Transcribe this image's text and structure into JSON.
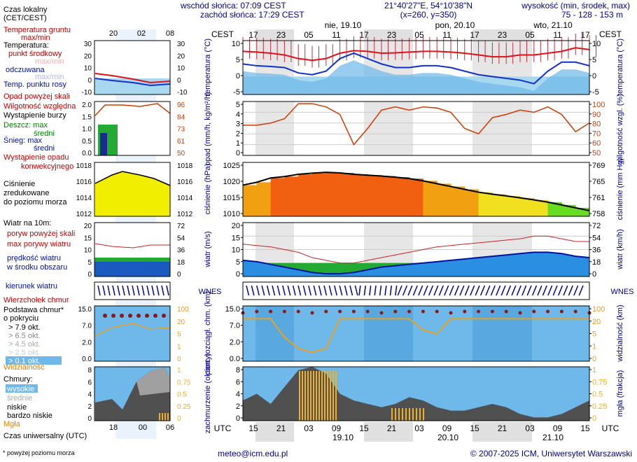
{
  "header": {
    "sunrise": "wschód słońca: 07:09 CEST",
    "sunset": "zachód słońca: 17:29 CEST",
    "coords": "21°40'27\"E, 54°10'38\"N",
    "grid": "(x=260, y=350)",
    "elev_label": "wysokość (min, środek, max)",
    "elev_values": "75 - 128 - 153 m",
    "tz_top": "CEST",
    "top_hours": [
      "17",
      "23",
      "05",
      "11",
      "17",
      "23",
      "05",
      "11",
      "17",
      "23",
      "05",
      "11",
      "17"
    ],
    "days": [
      "nie, 19.10",
      "pon, 20.10",
      "wto, 21.10"
    ],
    "utc_label": "UTC",
    "bottom_hours": [
      "15",
      "21",
      "03",
      "09",
      "15",
      "21",
      "03",
      "09",
      "15",
      "21",
      "03",
      "09",
      "15"
    ],
    "bottom_dates": [
      "19.10",
      "20.10",
      "21.10"
    ]
  },
  "legend": {
    "local_time": "Czas lokalny (CET/CEST)",
    "local_hours": [
      "20",
      "02",
      "08"
    ],
    "utc_time": "Czas uniwersalny (UTC)",
    "utc_hours": [
      "18",
      "00",
      "06"
    ],
    "temp": {
      "ground": "Temperatura gruntu",
      "ground_maxmin": "max/min",
      "title": "Temperatura:",
      "center": "punkt środkowy",
      "maxmin": "max/min",
      "feels": "odczuwana",
      "feels_maxmin": "max/min",
      "dew": "Temp. punktu rosy",
      "ticks": [
        "30",
        "20",
        "10",
        "0",
        "-10"
      ]
    },
    "precip": {
      "above": "Opad powyżej skali",
      "humidity": "Wilgotność względna",
      "storm": "Wystąpienie burzy",
      "rain": "Deszcz: max",
      "rain_mean": "średni",
      "snow": "Śnieg: max",
      "snow_mean": "średni",
      "occurrence": "Wystąpienie opadu konwekcyjnego",
      "ticks_left": [
        "2.0",
        "1.5",
        "1.0",
        "0.5",
        "0.0"
      ],
      "ticks_right": [
        "96",
        "84",
        "73",
        "61",
        "50"
      ]
    },
    "pressure": {
      "title": "Ciśnienie zredukowane do poziomu morza",
      "ticks_left": [
        "1018",
        "1016",
        "1014",
        "1012"
      ],
      "ticks_right": [
        "1018",
        "1016",
        "1014",
        "1012"
      ]
    },
    "wind": {
      "title": "Wiatr na 10m:",
      "gust_above": "poryw powyżej skali",
      "gust_max": "max porywy wiatru",
      "speed": "prędkość wiatru w środku obszaru",
      "ticks_left": [
        "20",
        "15",
        "10",
        "5",
        "0"
      ],
      "ticks_right": [
        "72",
        "54",
        "36",
        "18",
        "0"
      ]
    },
    "direction": "kierunek wiatru",
    "clouds": {
      "top": "Wierzchołek chmur",
      "base": "Podstawa chmur* o pokryciu",
      "okt": [
        "> 7.9 okt.",
        "> 6.5 okt.",
        "> 4.5 okt.",
        "> 2.5 okt.",
        "> 0.1 okt."
      ],
      "visibility": "Widzialność",
      "ticks_left": [
        "15.0",
        "7.0",
        "2.0",
        "0.0"
      ],
      "ticks_right": [
        "100",
        "20",
        "5",
        "1",
        "0"
      ]
    },
    "cover": {
      "title": "Chmury:",
      "high": "wysokie",
      "mid": "średnie",
      "low": "niskie",
      "very_low": "bardzo niskie",
      "fog": "Mgła",
      "ticks_left": [
        "8",
        "6",
        "4",
        "2",
        "0"
      ],
      "ticks_right": [
        "1",
        "0.75",
        "0.5",
        "0.25",
        "0"
      ]
    },
    "footnote": "* powyżej poziomu morza"
  },
  "axes": {
    "temp": {
      "left": "temperatura (°C)",
      "right": "temperatura (°C)",
      "ticks_l": [
        "10",
        "5",
        "0",
        "-5"
      ],
      "ticks_r": [
        "10",
        "5",
        "0",
        "-5"
      ]
    },
    "precip": {
      "left": "opad (mm/h, kg/m²/h)",
      "right": "wilgotność wzgl. (%)",
      "ticks_l": [
        "5",
        "4",
        "3",
        "2",
        "1",
        "0"
      ],
      "ticks_r": [
        "100",
        "90",
        "80",
        "70",
        "60",
        "50"
      ]
    },
    "pressure": {
      "left": "ciśnienie (hPa)",
      "right": "ciśnienie (mm Hg)",
      "ticks_l": [
        "1025",
        "1020",
        "1015",
        "1010"
      ],
      "ticks_r": [
        "769",
        "765",
        "761",
        "758"
      ]
    },
    "wind": {
      "left": "wiatr (m/s)",
      "right": "wiatr (km/h)",
      "ticks_l": [
        "20",
        "15",
        "10",
        "5",
        "0"
      ],
      "ticks_r": [
        "72",
        "54",
        "36",
        "18",
        "0"
      ]
    },
    "cloudbase": {
      "left": "pion. rozciągł. chm. (km)",
      "right": "widzialność (km)",
      "ticks_l": [
        "15.0",
        "7.0",
        "2.0",
        "0.0"
      ],
      "ticks_r": [
        "100",
        "20",
        "5",
        "1",
        "0"
      ]
    },
    "cover": {
      "left": "zachmurzenie (oktanty)",
      "right": "mgła (frakcja)",
      "ticks_l": [
        "8",
        "6",
        "4",
        "2",
        "0"
      ],
      "ticks_r": [
        "1",
        "0.75",
        "0.5",
        "0.25",
        "0"
      ]
    }
  },
  "footer": {
    "email": "meteo@icm.edu.pl",
    "copyright": "© 2007-2025 ICM, Uniwersytet Warszawski"
  },
  "colors": {
    "temp_line": "#e0101a",
    "feels_line": "#1030d0",
    "humidity": "#d03a00",
    "pressure_line": "#000000",
    "wind_fill": "#22aa33",
    "gust": "#cc2222",
    "arrow": "#00008b",
    "visibility": "#e8a020",
    "cloud_top": "#8b1a1a",
    "fog": "#f0b020"
  },
  "chart_data": {
    "type": "line",
    "x": [
      "15",
      "18",
      "21",
      "00",
      "03",
      "06",
      "09",
      "12",
      "15",
      "18",
      "21",
      "00",
      "03",
      "06",
      "09",
      "12",
      "15",
      "18",
      "21",
      "00",
      "03",
      "06",
      "09",
      "12",
      "15",
      "18"
    ],
    "x_unit": "UTC hour",
    "series": [
      {
        "name": "temperatura",
        "values": [
          7,
          6.8,
          6.5,
          6,
          5,
          4.5,
          5,
          6.5,
          7.2,
          7,
          6.5,
          6.6,
          6.8,
          7,
          7,
          6.8,
          6.5,
          6,
          5.5,
          5.5,
          6,
          6,
          6.5,
          7,
          8,
          7.5
        ]
      },
      {
        "name": "odczuwana",
        "values": [
          3.5,
          3,
          2.8,
          2.5,
          1,
          0.5,
          1.5,
          5,
          6.5,
          5,
          3.5,
          2.5,
          2.5,
          3,
          3,
          2.5,
          1.5,
          0.5,
          0,
          -0.5,
          -1,
          -2,
          1.5,
          4,
          4,
          3
        ]
      },
      {
        "name": "wilgotność",
        "values": [
          78,
          78,
          80,
          84,
          98,
          98,
          95,
          88,
          60,
          75,
          92,
          95,
          92,
          95,
          94,
          90,
          75,
          70,
          85,
          88,
          92,
          90,
          95,
          88,
          72,
          80
        ]
      },
      {
        "name": "ciśnienie",
        "values": [
          1019,
          1020,
          1021.5,
          1022,
          1022.8,
          1023.2,
          1023.5,
          1023.3,
          1022.8,
          1022.5,
          1022.2,
          1021.8,
          1021.3,
          1020.5,
          1019.5,
          1018.5,
          1017.5,
          1016.5,
          1015.8,
          1015.2,
          1014.5,
          1013.8,
          1013,
          1012,
          1011,
          1010
        ]
      },
      {
        "name": "prędkość wiatru",
        "values": [
          6,
          5.5,
          4.5,
          3.5,
          2.5,
          1.5,
          1,
          1,
          1.5,
          2.5,
          3.5,
          4,
          4.5,
          5,
          5.5,
          6,
          6.5,
          7,
          7.5,
          8,
          8.5,
          9,
          9,
          8.5,
          7.5,
          7
        ]
      },
      {
        "name": "max porywy",
        "values": [
          12,
          11.5,
          11,
          10,
          9,
          7,
          6,
          5,
          5,
          6,
          7,
          8,
          9,
          10,
          11,
          11.5,
          12,
          12.5,
          13,
          13.5,
          14,
          15,
          15,
          14,
          13,
          13
        ]
      },
      {
        "name": "widzialność",
        "values": [
          20,
          20,
          20,
          2,
          0.5,
          0.3,
          0.5,
          20,
          20,
          20,
          20,
          20,
          20,
          5,
          3,
          20,
          20,
          20,
          20,
          20,
          20,
          20,
          20,
          20,
          20,
          20
        ]
      }
    ],
    "ylim_temp": [
      -5,
      10
    ],
    "ylim_pressure": [
      1008,
      1027
    ],
    "ylim_wind": [
      0,
      20
    ]
  }
}
